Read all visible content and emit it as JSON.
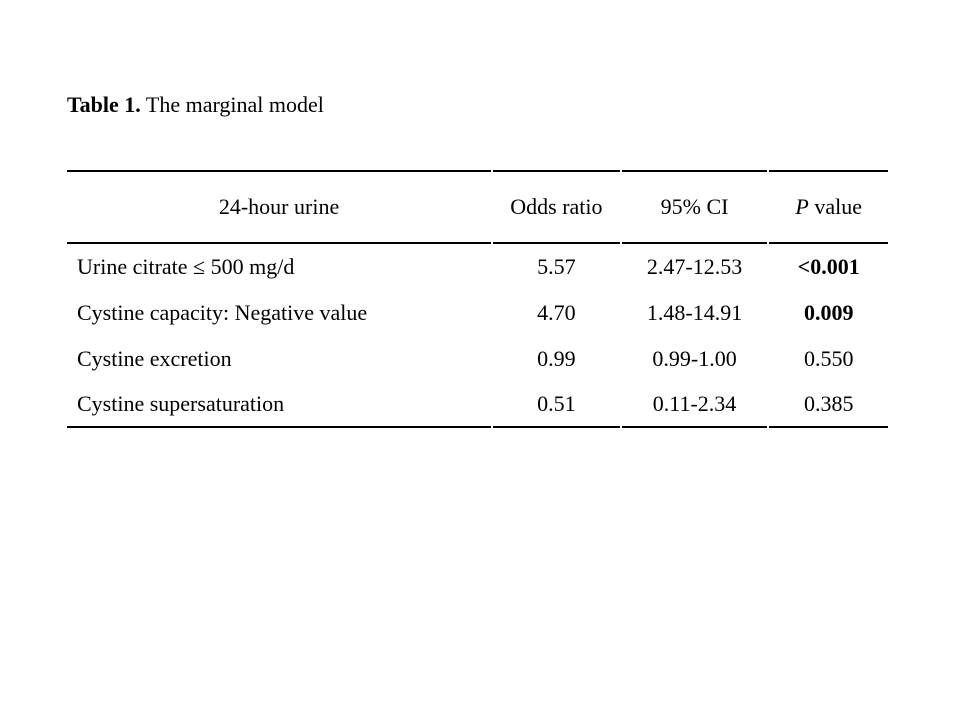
{
  "page": {
    "background": "#ffffff",
    "text_color": "#000000",
    "rule_color": "#000000"
  },
  "caption": {
    "label": "Table 1.",
    "title": " The marginal model"
  },
  "table": {
    "header": {
      "col1": "24-hour urine",
      "col2": "Odds ratio",
      "col3": "95% CI",
      "col4_italic": "P",
      "col4_rest": " value"
    },
    "rows": [
      {
        "label": "Urine citrate ≤ 500 mg/d",
        "odds_ratio": "5.57",
        "ci": "2.47-12.53",
        "p_value": "<0.001",
        "p_bold": true
      },
      {
        "label": "Cystine capacity: Negative value",
        "odds_ratio": "4.70",
        "ci": "1.48-14.91",
        "p_value": "0.009",
        "p_bold": true
      },
      {
        "label": "Cystine excretion",
        "odds_ratio": "0.99",
        "ci": "0.99-1.00",
        "p_value": "0.550",
        "p_bold": false
      },
      {
        "label": "Cystine supersaturation",
        "odds_ratio": "0.51",
        "ci": "0.11-2.34",
        "p_value": "0.385",
        "p_bold": false
      }
    ]
  }
}
